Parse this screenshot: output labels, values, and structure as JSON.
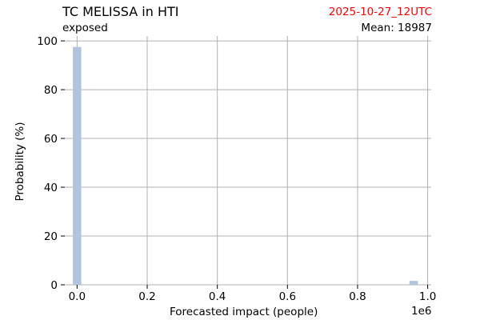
{
  "chart_data": {
    "type": "bar",
    "title": "TC MELISSA in HTI",
    "subtitle": "exposed",
    "date_label": "2025-10-27_12UTC",
    "mean_label": "Mean: 18987",
    "xlabel": "Forecasted impact (people)",
    "ylabel": "Probability (%)",
    "x_offset_label": "1e6",
    "xlim": [
      -0.035,
      1.01
    ],
    "ylim": [
      0,
      102
    ],
    "x_ticks": [
      0.0,
      0.2,
      0.4,
      0.6,
      0.8,
      1.0
    ],
    "x_tick_labels": [
      "0.0",
      "0.2",
      "0.4",
      "0.6",
      "0.8",
      "1.0"
    ],
    "y_ticks": [
      0,
      20,
      40,
      60,
      80,
      100
    ],
    "y_tick_labels": [
      "0",
      "20",
      "40",
      "60",
      "80",
      "100"
    ],
    "grid": true,
    "bin_width": 0.024,
    "series": [
      {
        "values": [
          {
            "x": 0.0,
            "y": 97.5
          },
          {
            "x": 0.96,
            "y": 1.6
          }
        ]
      }
    ],
    "colors": {
      "bar": "#b0c4de",
      "grid": "#b0b0b0",
      "date": "#ff0000",
      "text": "#000000"
    }
  }
}
